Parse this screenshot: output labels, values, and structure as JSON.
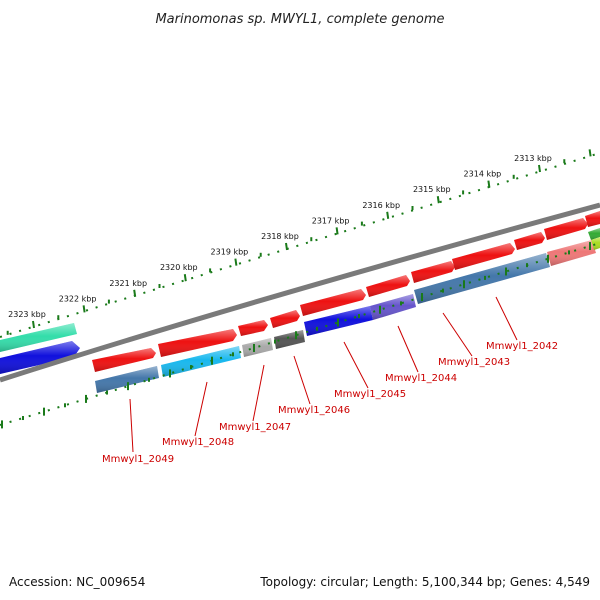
{
  "title": "Marinomonas sp. MWYL1, complete genome",
  "footer": {
    "accession": "Accession: NC_009654",
    "summary": "Topology: circular; Length: 5,100,344 bp; Genes: 4,549"
  },
  "ruler": {
    "tick_labels": [
      "2313 kbp",
      "2314 kbp",
      "2315 kbp",
      "2316 kbp",
      "2317 kbp",
      "2318 kbp",
      "2319 kbp",
      "2320 kbp",
      "2321 kbp",
      "2322 kbp",
      "2323 kbp"
    ]
  },
  "genes": [
    {
      "label": "Mmwyl1_2042"
    },
    {
      "label": "Mmwyl1_2043"
    },
    {
      "label": "Mmwyl1_2044"
    },
    {
      "label": "Mmwyl1_2045"
    },
    {
      "label": "Mmwyl1_2046"
    },
    {
      "label": "Mmwyl1_2047"
    },
    {
      "label": "Mmwyl1_2048"
    },
    {
      "label": "Mmwyl1_2049"
    }
  ],
  "colors": {
    "backbone": "#7a7a7a",
    "tick": "#1a7a1a",
    "label": "#cc0000",
    "cds": "#ee1111",
    "cog_steelblue": "#4477aa",
    "cog_blue": "#1010dd",
    "cog_cyan": "#19b8ee",
    "cog_gray": "#a9a9a9",
    "cog_darkgray": "#555555",
    "cog_purple": "#6655cc",
    "cog_pink": "#ee7777",
    "cog_teal": "#33ddaa",
    "cog_green": "#33aa33",
    "cog_lime": "#aadd22"
  }
}
